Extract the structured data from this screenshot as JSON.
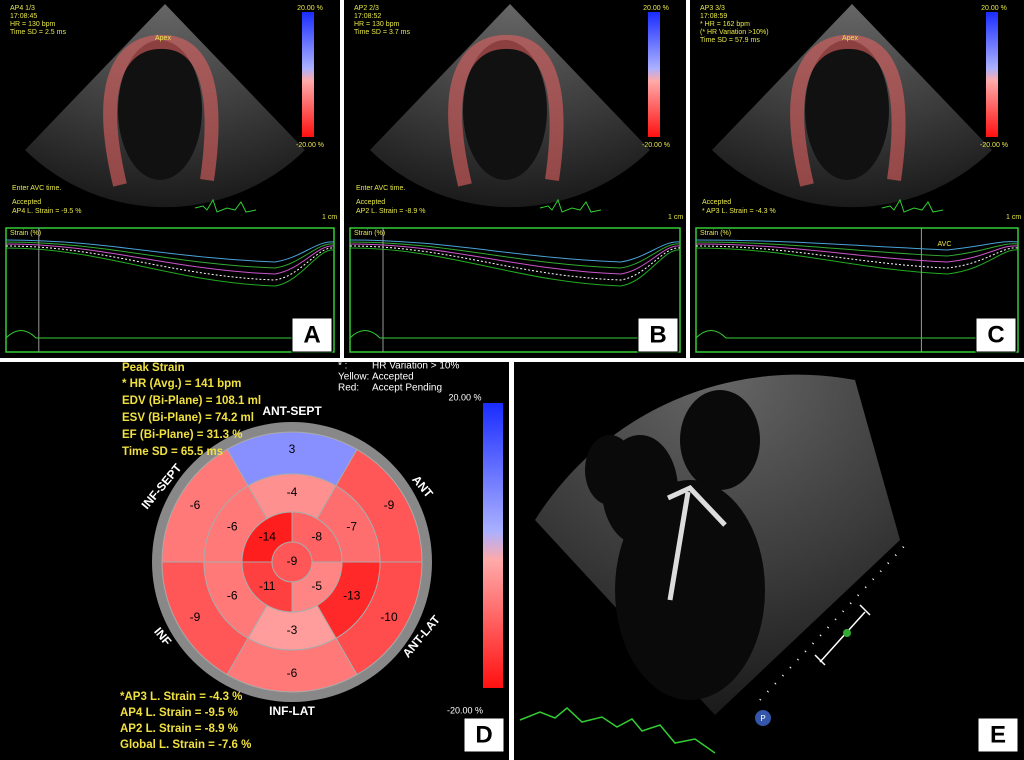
{
  "panels": {
    "A": {
      "letter": "A",
      "header": [
        "AP4 1/3",
        "17:08:45",
        "HR = 130 bpm",
        "Time SD = 2.5 ms"
      ],
      "apex": "Apex",
      "scale_max": "20.00 %",
      "scale_min": "-20.00 %",
      "cm": "1 cm",
      "avc": "Enter AVC time.",
      "status": "Accepted",
      "strain": "AP4 L. Strain = -9.5 %",
      "plot_label": "Strain (%)"
    },
    "B": {
      "letter": "B",
      "header": [
        "AP2 2/3",
        "17:08:52",
        "HR = 130 bpm",
        "Time SD = 3.7 ms"
      ],
      "scale_max": "20.00 %",
      "scale_min": "-20.00 %",
      "cm": "1 cm",
      "avc": "Enter AVC time.",
      "status": "Accepted",
      "strain": "AP2 L. Strain = -8.9 %",
      "plot_label": "Strain (%)"
    },
    "C": {
      "letter": "C",
      "header": [
        "AP3 3/3",
        "17:08:59",
        "* HR = 162 bpm",
        "(* HR Variation >10%)",
        "Time SD = 57.9 ms"
      ],
      "apex": "Apex",
      "scale_max": "20.00 %",
      "scale_min": "-20.00 %",
      "cm": "1 cm",
      "status": "Accepted",
      "strain": "* AP3 L. Strain = -4.3 %",
      "plot_label": "Strain (%)",
      "avc_marker": "AVC"
    },
    "D": {
      "letter": "D",
      "title": "Peak Strain",
      "info": [
        "* HR (Avg.) = 141 bpm",
        "EDV (Bi-Plane) = 108.1 ml",
        "ESV (Bi-Plane) = 74.2 ml",
        "EF (Bi-Plane) = 31.3 %",
        "Time SD = 65.5 ms"
      ],
      "legend": [
        [
          "* :",
          "HR Variation > 10%"
        ],
        [
          "Yellow:",
          "Accepted"
        ],
        [
          "Red:",
          "Accept Pending"
        ]
      ],
      "walls": [
        "ANT-SEPT",
        "ANT",
        "ANT-LAT",
        "INF-LAT",
        "INF",
        "INF-SEPT"
      ],
      "segments": [
        3,
        -9,
        -10,
        -6,
        -9,
        -6,
        -4,
        -7,
        -13,
        -3,
        -6,
        -6,
        -8,
        -5,
        -11,
        -14,
        -9
      ],
      "scale_max": "20.00 %",
      "scale_min": "-20.00 %",
      "results": [
        "*AP3 L. Strain = -4.3 %",
        "AP4 L. Strain = -9.5 %",
        "AP2 L. Strain = -8.9 %",
        "Global L. Strain = -7.6 %"
      ]
    },
    "E": {
      "letter": "E",
      "marker": "P"
    }
  }
}
